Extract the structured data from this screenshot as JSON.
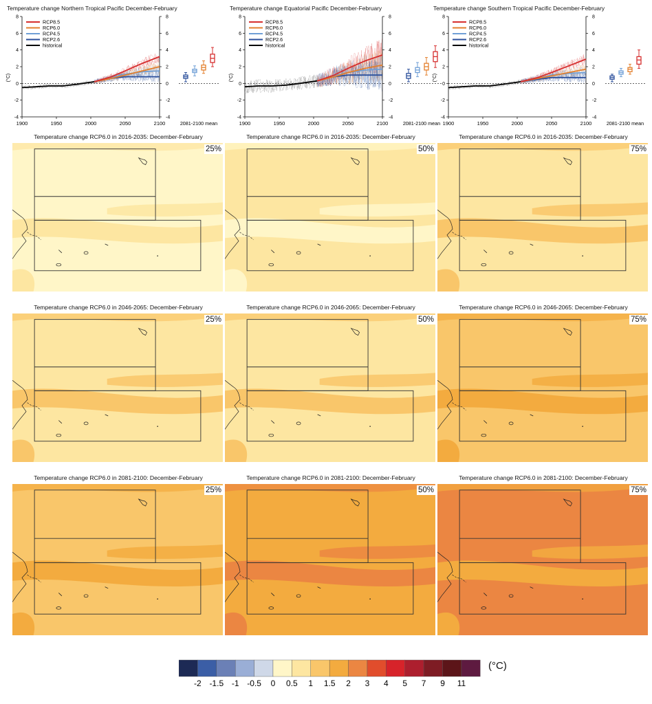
{
  "timeseries": [
    {
      "title": "Temperature change Northern Tropical Pacific December-February"
    },
    {
      "title": "Temperature change Equatorial Pacific December-February"
    },
    {
      "title": "Temperature change Southern Tropical Pacific December-February"
    }
  ],
  "legend": [
    "RCP8.5",
    "RCP6.0",
    "RCP4.5",
    "RCP2.6",
    "historical"
  ],
  "axis": {
    "y_unit": "(°C)",
    "y_ticks": [
      "-4",
      "-2",
      "0",
      "2",
      "4",
      "6",
      "8"
    ],
    "x_ticks": [
      "1900",
      "1950",
      "2000",
      "2050",
      "2100"
    ],
    "box_label": "2081-2100 mean"
  },
  "colors": {
    "rcp85": "#d62e2e",
    "rcp60": "#e37f2c",
    "rcp45": "#6f9fd6",
    "rcp26": "#2b4f9b",
    "historical": "#000000"
  },
  "maps": {
    "rows": [
      {
        "title": "Temperature change RCP6.0 in 2016-2035: December-February"
      },
      {
        "title": "Temperature change RCP6.0 in 2046-2065: December-February"
      },
      {
        "title": "Temperature change RCP6.0 in 2081-2100: December-February"
      }
    ],
    "percentiles": [
      "25%",
      "50%",
      "75%"
    ],
    "fills": [
      [
        [
          "#fff6c8",
          "#fde6a1"
        ],
        [
          "#fde6a1",
          "#fff6c8"
        ],
        [
          "#fde6a1",
          "#f9c66a"
        ]
      ],
      [
        [
          "#fde6a1",
          "#f9c66a"
        ],
        [
          "#fde6a1",
          "#f9c66a"
        ],
        [
          "#f9c66a",
          "#f3ab3f"
        ]
      ],
      [
        [
          "#f9c66a",
          "#f3ab3f"
        ],
        [
          "#f3ab3f",
          "#eb8642"
        ],
        [
          "#eb8642",
          "#f3ab3f"
        ]
      ]
    ]
  },
  "colorbar": {
    "unit": "(°C)",
    "labels": [
      "-2",
      "-1.5",
      "-1",
      "-0.5",
      "0",
      "0.5",
      "1",
      "1.5",
      "2",
      "3",
      "4",
      "5",
      "7",
      "9",
      "11"
    ],
    "colors": [
      "#1d2a55",
      "#3b5ea6",
      "#6b80b6",
      "#9aaed6",
      "#cfd8e8",
      "#fff6c8",
      "#fde6a1",
      "#f9c66a",
      "#f3ab3f",
      "#eb8642",
      "#e14d2c",
      "#d7232a",
      "#ad1f2e",
      "#7e1c24",
      "#5c1519",
      "#5e1a40"
    ]
  },
  "chart_data": [
    {
      "type": "line",
      "title": "Temperature change Northern Tropical Pacific December-February",
      "ylabel": "(°C)",
      "ylim": [
        -4,
        8
      ],
      "xlim": [
        1900,
        2100
      ],
      "series": [
        {
          "name": "historical",
          "x": [
            1900,
            1920,
            1940,
            1960,
            1980,
            2005
          ],
          "values": [
            -0.5,
            -0.4,
            -0.3,
            -0.3,
            -0.1,
            0.2
          ]
        },
        {
          "name": "RCP8.5",
          "x": [
            2005,
            2030,
            2050,
            2075,
            2100
          ],
          "values": [
            0.2,
            0.8,
            1.5,
            2.4,
            3.2
          ]
        },
        {
          "name": "RCP6.0",
          "x": [
            2005,
            2030,
            2050,
            2075,
            2100
          ],
          "values": [
            0.2,
            0.6,
            1.0,
            1.5,
            2.0
          ]
        },
        {
          "name": "RCP4.5",
          "x": [
            2005,
            2030,
            2050,
            2075,
            2100
          ],
          "values": [
            0.2,
            0.7,
            1.1,
            1.4,
            1.5
          ]
        },
        {
          "name": "RCP2.6",
          "x": [
            2005,
            2030,
            2050,
            2075,
            2100
          ],
          "values": [
            0.2,
            0.6,
            0.8,
            0.8,
            0.8
          ]
        }
      ],
      "boxes_2081_2100": [
        {
          "name": "RCP2.6",
          "min": 0.2,
          "q1": 0.6,
          "median": 0.8,
          "q3": 1.0,
          "max": 1.3
        },
        {
          "name": "RCP4.5",
          "min": 0.9,
          "q1": 1.3,
          "median": 1.5,
          "q3": 1.7,
          "max": 2.1
        },
        {
          "name": "RCP6.0",
          "min": 1.2,
          "q1": 1.6,
          "median": 1.9,
          "q3": 2.2,
          "max": 2.7
        },
        {
          "name": "RCP8.5",
          "min": 2.0,
          "q1": 2.5,
          "median": 3.0,
          "q3": 3.5,
          "max": 4.3
        }
      ]
    },
    {
      "type": "line",
      "title": "Temperature change Equatorial Pacific December-February",
      "ylabel": "(°C)",
      "ylim": [
        -4,
        8
      ],
      "xlim": [
        1900,
        2100
      ],
      "series": [
        {
          "name": "historical",
          "x": [
            1900,
            1920,
            1940,
            1960,
            1980,
            2005
          ],
          "values": [
            -0.4,
            -0.3,
            -0.3,
            -0.2,
            0.0,
            0.3
          ]
        },
        {
          "name": "RCP8.5",
          "x": [
            2005,
            2030,
            2050,
            2075,
            2100
          ],
          "values": [
            0.3,
            1.0,
            1.8,
            2.7,
            3.4
          ]
        },
        {
          "name": "RCP6.0",
          "x": [
            2005,
            2030,
            2050,
            2075,
            2100
          ],
          "values": [
            0.3,
            0.8,
            1.3,
            1.8,
            2.2
          ]
        },
        {
          "name": "RCP4.5",
          "x": [
            2005,
            2030,
            2050,
            2075,
            2100
          ],
          "values": [
            0.3,
            0.9,
            1.3,
            1.6,
            1.7
          ]
        },
        {
          "name": "RCP2.6",
          "x": [
            2005,
            2030,
            2050,
            2075,
            2100
          ],
          "values": [
            0.3,
            0.8,
            1.0,
            1.0,
            1.0
          ]
        }
      ],
      "boxes_2081_2100": [
        {
          "name": "RCP2.6",
          "min": 0.2,
          "q1": 0.6,
          "median": 0.9,
          "q3": 1.2,
          "max": 1.7
        },
        {
          "name": "RCP4.5",
          "min": 0.8,
          "q1": 1.3,
          "median": 1.6,
          "q3": 1.9,
          "max": 2.5
        },
        {
          "name": "RCP6.0",
          "min": 1.0,
          "q1": 1.6,
          "median": 2.0,
          "q3": 2.4,
          "max": 3.1
        },
        {
          "name": "RCP8.5",
          "min": 1.9,
          "q1": 2.6,
          "median": 3.2,
          "q3": 3.8,
          "max": 4.5
        }
      ]
    },
    {
      "type": "line",
      "title": "Temperature change Southern Tropical Pacific December-February",
      "ylabel": "(°C)",
      "ylim": [
        -4,
        8
      ],
      "xlim": [
        1900,
        2100
      ],
      "series": [
        {
          "name": "historical",
          "x": [
            1900,
            1920,
            1940,
            1960,
            1980,
            2005
          ],
          "values": [
            -0.5,
            -0.4,
            -0.3,
            -0.3,
            -0.1,
            0.2
          ]
        },
        {
          "name": "RCP8.5",
          "x": [
            2005,
            2030,
            2050,
            2075,
            2100
          ],
          "values": [
            0.2,
            0.7,
            1.3,
            2.1,
            2.9
          ]
        },
        {
          "name": "RCP6.0",
          "x": [
            2005,
            2030,
            2050,
            2075,
            2100
          ],
          "values": [
            0.2,
            0.6,
            0.9,
            1.3,
            1.7
          ]
        },
        {
          "name": "RCP4.5",
          "x": [
            2005,
            2030,
            2050,
            2075,
            2100
          ],
          "values": [
            0.2,
            0.6,
            1.0,
            1.2,
            1.3
          ]
        },
        {
          "name": "RCP2.6",
          "x": [
            2005,
            2030,
            2050,
            2075,
            2100
          ],
          "values": [
            0.2,
            0.5,
            0.7,
            0.7,
            0.7
          ]
        }
      ],
      "boxes_2081_2100": [
        {
          "name": "RCP2.6",
          "min": 0.2,
          "q1": 0.5,
          "median": 0.7,
          "q3": 0.9,
          "max": 1.1
        },
        {
          "name": "RCP4.5",
          "min": 0.8,
          "q1": 1.1,
          "median": 1.3,
          "q3": 1.5,
          "max": 1.8
        },
        {
          "name": "RCP6.0",
          "min": 1.1,
          "q1": 1.4,
          "median": 1.7,
          "q3": 1.9,
          "max": 2.3
        },
        {
          "name": "RCP8.5",
          "min": 1.8,
          "q1": 2.3,
          "median": 2.8,
          "q3": 3.2,
          "max": 4.0
        }
      ]
    }
  ]
}
